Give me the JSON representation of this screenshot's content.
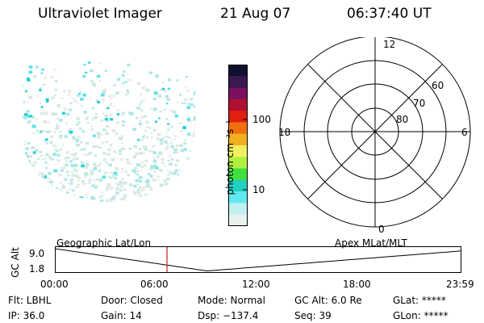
{
  "header": {
    "instrument": "Ultraviolet Imager",
    "date": "21 Aug 07",
    "time": "06:37:40 UT"
  },
  "colorbar": {
    "label": "photon cm⁻²s⁻¹",
    "ticks": [
      "100",
      "10"
    ],
    "colors": [
      "#101030",
      "#3a1850",
      "#7a1060",
      "#b01030",
      "#e02010",
      "#f07010",
      "#f0b020",
      "#f0f060",
      "#b0f040",
      "#40e040",
      "#20d0c0",
      "#60e8f0",
      "#c0f0f0",
      "#e8f0f0"
    ]
  },
  "polar_grid": {
    "mlt_labels": [
      "12",
      "18",
      "6",
      "0"
    ],
    "mlat_labels": [
      "60",
      "70",
      "80"
    ]
  },
  "altitude_strip": {
    "axis_label": "GC Alt",
    "y_ticks": [
      "9.0",
      "1.8"
    ],
    "left_label": "Geographic Lat/Lon",
    "right_label": "Apex MLat/MLT",
    "time_ticks": [
      "00:00",
      "06:00",
      "12:00",
      "18:00",
      "23:59"
    ],
    "current_time_marker_hours": 6.63,
    "colors": {
      "marker": "#c02020",
      "curve": "#000000"
    }
  },
  "info": {
    "filter": "Flt: LBHL",
    "ip": "IP: 36.0",
    "door": "Door: Closed",
    "gain": "Gain: 14",
    "mode": "Mode: Normal",
    "dsp": "Dsp: −137.4",
    "gc_alt": "GC Alt: 6.0 Re",
    "seq": "Seq: 39",
    "glat": "GLat: *****",
    "glon": "GLon: *****"
  },
  "image_colors": {
    "speckle": [
      "#20d0d8",
      "#60e0e8",
      "#a8e8e8",
      "#c8e8e0",
      "#dce8e0",
      "#e8ece8"
    ]
  }
}
